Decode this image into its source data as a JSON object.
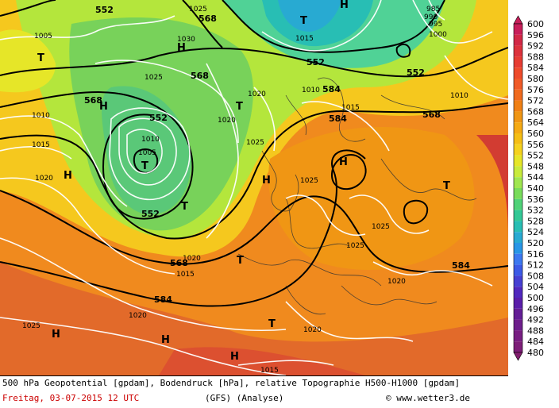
{
  "footer": {
    "description": "500 hPa Geopotential [gpdam], Bodendruck [hPa], relative Topographie H500-H1000 [gpdam]",
    "date": "Freitag, 03-07-2015",
    "time": "12 UTC",
    "model": "(GFS)",
    "analysis": "(Analyse)",
    "credit": "www.wetter3.de"
  },
  "colorbar": {
    "labels": [
      "600",
      "596",
      "592",
      "588",
      "584",
      "580",
      "576",
      "572",
      "568",
      "564",
      "560",
      "556",
      "552",
      "548",
      "544",
      "540",
      "536",
      "532",
      "528",
      "524",
      "520",
      "516",
      "512",
      "508",
      "504",
      "500",
      "496",
      "492",
      "488",
      "484",
      "480"
    ],
    "colors": [
      "#c81e5a",
      "#d22846",
      "#dc323c",
      "#e63c32",
      "#ee4a2a",
      "#f05a28",
      "#f06a1e",
      "#f08014",
      "#f09614",
      "#f5aa14",
      "#f5be14",
      "#f5d21e",
      "#e6e628",
      "#c8eb3c",
      "#a0e650",
      "#78dc5a",
      "#50d278",
      "#32c896",
      "#28beb4",
      "#28aad2",
      "#2896e6",
      "#3c78f0",
      "#3c5ae6",
      "#4640d2",
      "#5028be",
      "#5a1eaa",
      "#641e96",
      "#6e1e8c",
      "#781e82",
      "#7d1e78",
      "#821e6e"
    ]
  },
  "map": {
    "geopotential_labels": [
      "552",
      "568",
      "552",
      "568",
      "552",
      "584",
      "584",
      "552",
      "568",
      "568",
      "568",
      "584",
      "552",
      "584",
      "568"
    ],
    "pressure_labels": [
      "1005",
      "1010",
      "1015",
      "1020",
      "1030",
      "1025",
      "1010",
      "1005",
      "1025",
      "1020",
      "1025",
      "1015",
      "1020",
      "1025",
      "1025",
      "1020",
      "1025",
      "1015",
      "1020",
      "1020",
      "1025",
      "1020",
      "1015",
      "1010",
      "1000",
      "995",
      "990",
      "985",
      "1010",
      "1015"
    ],
    "high_marker": "H",
    "low_marker": "T"
  }
}
